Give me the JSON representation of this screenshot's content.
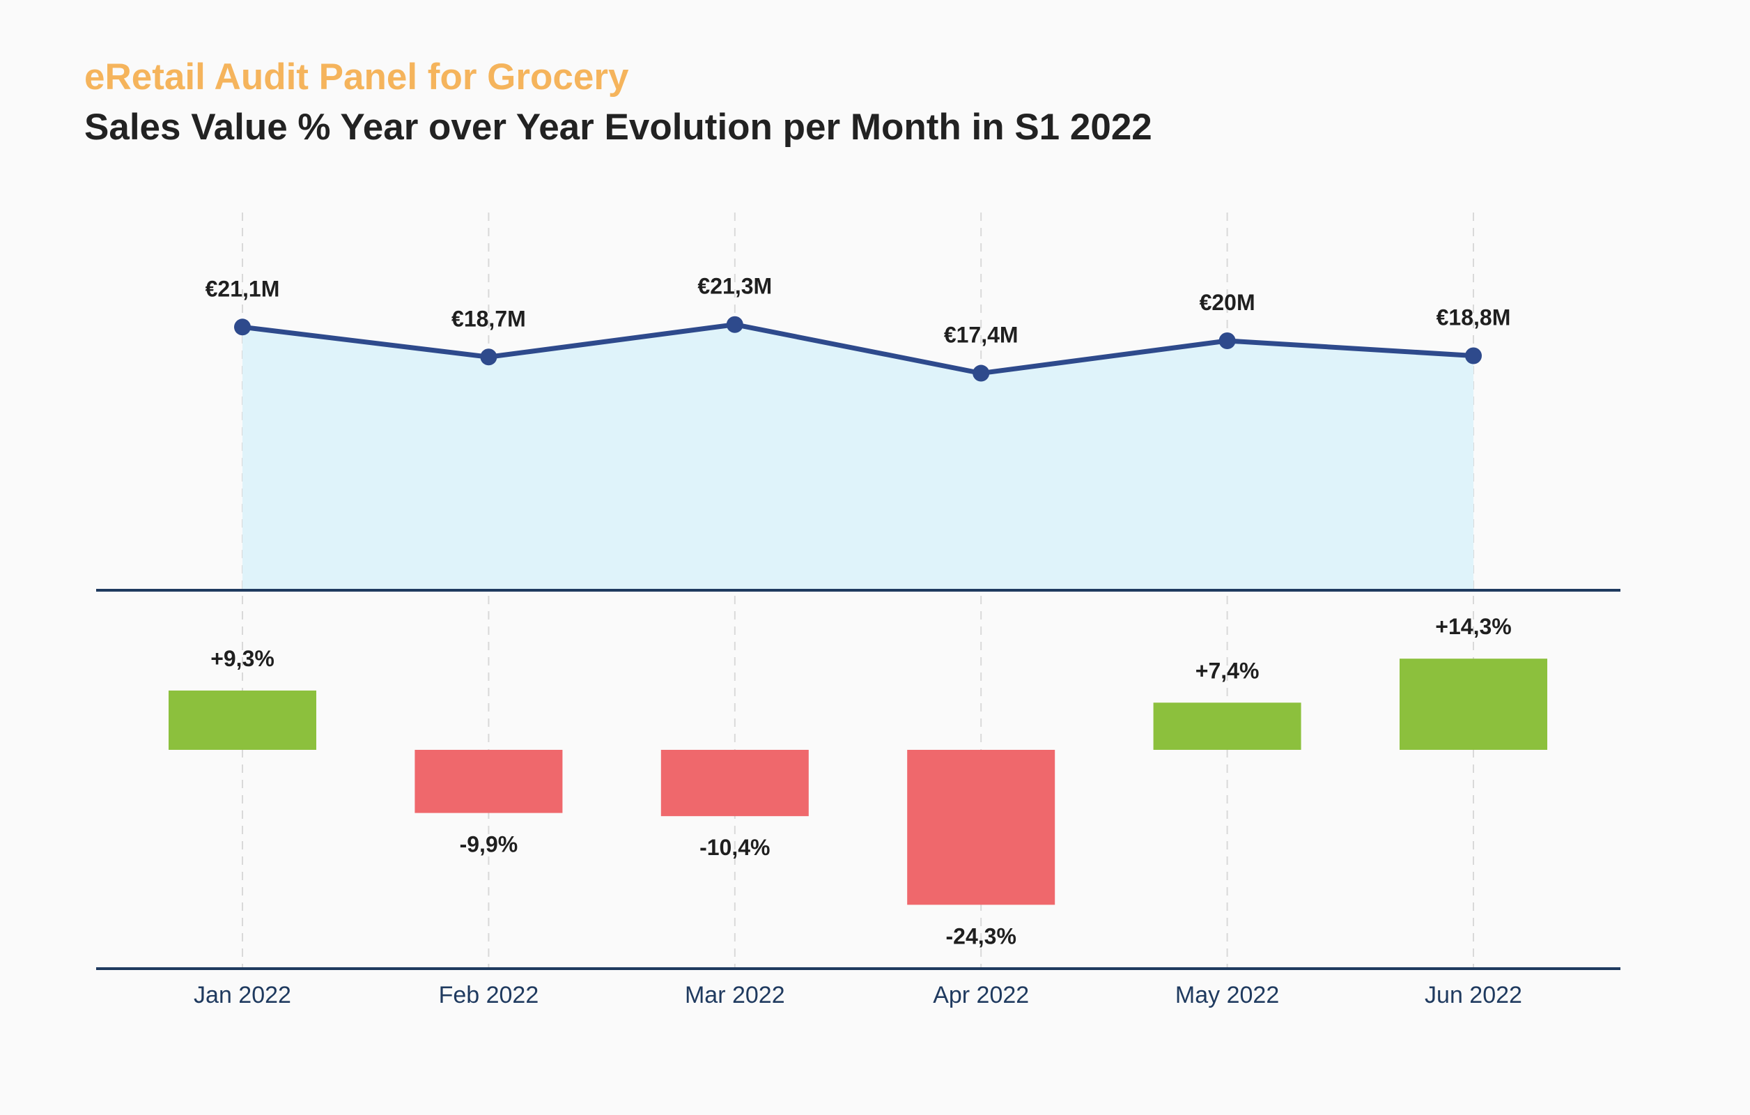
{
  "header": {
    "subtitle": "eRetail Audit Panel for Grocery",
    "title": "Sales Value % Year over Year Evolution per Month in S1 2022"
  },
  "colors": {
    "subtitle": "#f5b45c",
    "title": "#222222",
    "line": "#2e4a8c",
    "area": "#dff3fa",
    "positive_bar": "#8cc03d",
    "negative_bar": "#ef686c",
    "axis": "#1f3a5f",
    "grid": "#d9d9d9"
  },
  "chart_data": [
    {
      "type": "area",
      "title": "Sales Value",
      "categories": [
        "Jan 2022",
        "Feb 2022",
        "Mar 2022",
        "Apr 2022",
        "May 2022",
        "Jun 2022"
      ],
      "values": [
        21.1,
        18.7,
        21.3,
        17.4,
        20,
        18.8
      ],
      "value_labels": [
        "€21,1M",
        "€18,7M",
        "€21,3M",
        "€17,4M",
        "€20M",
        "€18,8M"
      ],
      "unit": "€M",
      "ylim": [
        0,
        24
      ]
    },
    {
      "type": "bar",
      "title": "% Year over Year Evolution",
      "categories": [
        "Jan 2022",
        "Feb 2022",
        "Mar 2022",
        "Apr 2022",
        "May 2022",
        "Jun 2022"
      ],
      "values": [
        9.3,
        -9.9,
        -10.4,
        -24.3,
        7.4,
        14.3
      ],
      "value_labels": [
        "+9,3%",
        "-9,9%",
        "-10,4%",
        "-24,3%",
        "+7,4%",
        "+14,3%"
      ],
      "unit": "%",
      "ylim": [
        -34,
        17
      ]
    }
  ]
}
